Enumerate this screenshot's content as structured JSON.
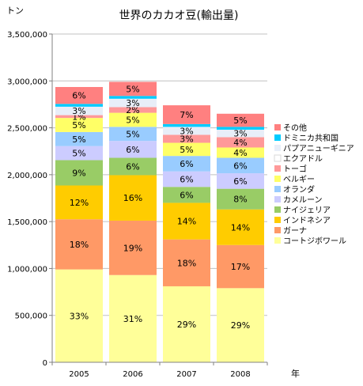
{
  "chart_data": {
    "type": "bar",
    "stacked": true,
    "title": "世界のカカオ豆(輸出量)",
    "ylabel": "トン",
    "xlabel": "年",
    "ylim": [
      0,
      3500000
    ],
    "yticks": [
      0,
      500000,
      1000000,
      1500000,
      2000000,
      2500000,
      3000000,
      3500000
    ],
    "ytick_labels": [
      "0",
      "500,000",
      "1,000,000",
      "1,500,000",
      "2,000,000",
      "2,500,000",
      "3,000,000",
      "3,500,000"
    ],
    "grid": true,
    "legend_position": "right",
    "categories": [
      "2005",
      "2006",
      "2007",
      "2008"
    ],
    "series": [
      {
        "name": "コートジボワール",
        "color": "#FFFF99",
        "values": [
          990000,
          930000,
          810000,
          790000
        ],
        "labels": [
          "33%",
          "31%",
          "29%",
          "29%"
        ]
      },
      {
        "name": "ガーナ",
        "color": "#FF9966",
        "values": [
          535000,
          580000,
          500000,
          460000
        ],
        "labels": [
          "18%",
          "19%",
          "18%",
          "17%"
        ]
      },
      {
        "name": "インドネシア",
        "color": "#FFCC00",
        "values": [
          360000,
          485000,
          390000,
          380000
        ],
        "labels": [
          "12%",
          "16%",
          "14%",
          "14%"
        ]
      },
      {
        "name": "ナイジェリア",
        "color": "#99CC66",
        "values": [
          270000,
          185000,
          170000,
          220000
        ],
        "labels": [
          "9%",
          "6%",
          "6%",
          "8%"
        ]
      },
      {
        "name": "カメルーン",
        "color": "#CCCCFF",
        "values": [
          150000,
          180000,
          165000,
          165000
        ],
        "labels": [
          "5%",
          "6%",
          "6%",
          "6%"
        ]
      },
      {
        "name": "オランダ",
        "color": "#99CCFF",
        "values": [
          150000,
          150000,
          165000,
          165000
        ],
        "labels": [
          "5%",
          "5%",
          "6%",
          "6%"
        ]
      },
      {
        "name": "ベルギー",
        "color": "#FFFF66",
        "values": [
          150000,
          150000,
          140000,
          110000
        ],
        "labels": [
          "5%",
          "5%",
          "5%",
          "4%"
        ]
      },
      {
        "name": "トーゴ",
        "color": "#FF9999",
        "values": [
          30000,
          60000,
          85000,
          110000
        ],
        "labels": [
          "1%",
          "2%",
          "3%",
          "4%"
        ]
      },
      {
        "name": "エクアドル",
        "color": "#FFFFFF",
        "values": [
          0,
          0,
          0,
          0
        ],
        "labels": [
          "",
          "",
          "",
          ""
        ]
      },
      {
        "name": "パプアニューギニア",
        "color": "#E8EEF8",
        "values": [
          90000,
          90000,
          85000,
          80000
        ],
        "labels": [
          "3%",
          "3%",
          "3%",
          "3%"
        ]
      },
      {
        "name": "ドミニカ共和国",
        "color": "#00CCFF",
        "values": [
          30000,
          30000,
          30000,
          30000
        ],
        "labels": [
          "",
          "",
          "",
          ""
        ]
      },
      {
        "name": "その他",
        "color": "#FF8080",
        "values": [
          180000,
          150000,
          200000,
          140000
        ],
        "labels": [
          "6%",
          "5%",
          "7%",
          "5%"
        ]
      }
    ]
  }
}
